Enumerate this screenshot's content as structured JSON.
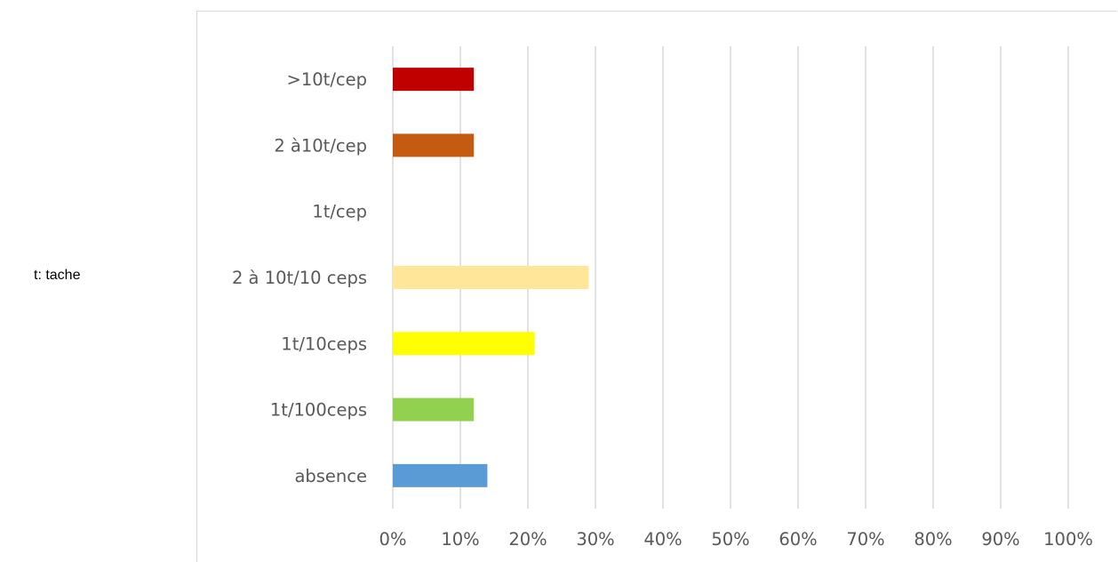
{
  "note": "t: tache",
  "chart_data": {
    "type": "bar",
    "orientation": "horizontal",
    "title": "",
    "xlabel": "",
    "ylabel": "",
    "categories": [
      "absence",
      "1t/100ceps",
      "1t/10ceps",
      "2 à 10t/10 ceps",
      "1t/cep",
      "2 à10t/cep",
      ">10t/cep"
    ],
    "values": [
      14,
      12,
      21,
      29,
      0,
      12,
      12
    ],
    "colors": [
      "#5b9bd5",
      "#92d050",
      "#ffff00",
      "#ffe699",
      "#ffc000",
      "#c55a11",
      "#c00000"
    ],
    "xlim": [
      0,
      100
    ],
    "x_ticks": [
      "0%",
      "10%",
      "20%",
      "30%",
      "40%",
      "50%",
      "60%",
      "70%",
      "80%",
      "90%",
      "100%"
    ],
    "grid": "vertical",
    "grid_color": "#d9d9d9",
    "legend": "none"
  }
}
